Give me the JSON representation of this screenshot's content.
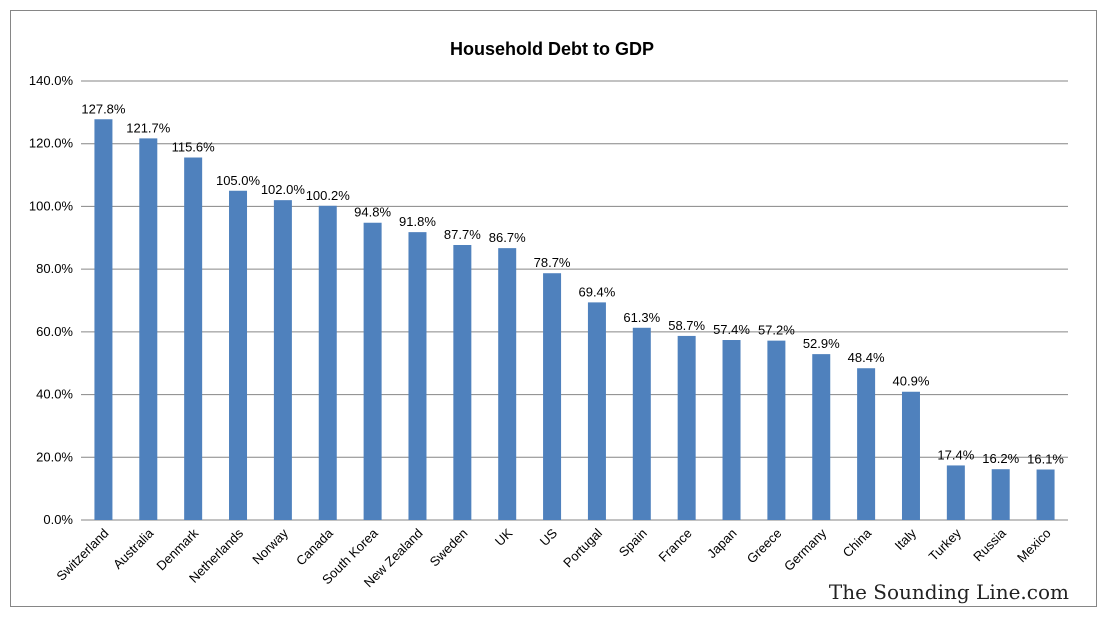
{
  "chart_data": {
    "type": "bar",
    "title": "Household Debt to GDP",
    "xlabel": "",
    "ylabel": "",
    "ylim": [
      0,
      140
    ],
    "y_ticks": [
      0,
      20,
      40,
      60,
      80,
      100,
      120,
      140
    ],
    "y_tick_labels": [
      "0.0%",
      "20.0%",
      "40.0%",
      "60.0%",
      "80.0%",
      "100.0%",
      "120.0%",
      "140.0%"
    ],
    "grid": true,
    "legend": "none",
    "bar_color": "#4F81BD",
    "categories": [
      "Switzerland",
      "Australia",
      "Denmark",
      "Netherlands",
      "Norway",
      "Canada",
      "South Korea",
      "New Zealand",
      "Sweden",
      "UK",
      "US",
      "Portugal",
      "Spain",
      "France",
      "Japan",
      "Greece",
      "Germany",
      "China",
      "Italy",
      "Turkey",
      "Russia",
      "Mexico"
    ],
    "values": [
      127.8,
      121.7,
      115.6,
      105.0,
      102.0,
      100.2,
      94.8,
      91.8,
      87.7,
      86.7,
      78.7,
      69.4,
      61.3,
      58.7,
      57.4,
      57.2,
      52.9,
      48.4,
      40.9,
      17.4,
      16.2,
      16.1
    ],
    "data_labels": [
      "127.8%",
      "121.7%",
      "115.6%",
      "105.0%",
      "102.0%",
      "100.2%",
      "94.8%",
      "91.8%",
      "87.7%",
      "86.7%",
      "78.7%",
      "69.4%",
      "61.3%",
      "58.7%",
      "57.4%",
      "57.2%",
      "52.9%",
      "48.4%",
      "40.9%",
      "17.4%",
      "16.2%",
      "16.1%"
    ]
  },
  "watermark": "The Sounding Line.com"
}
